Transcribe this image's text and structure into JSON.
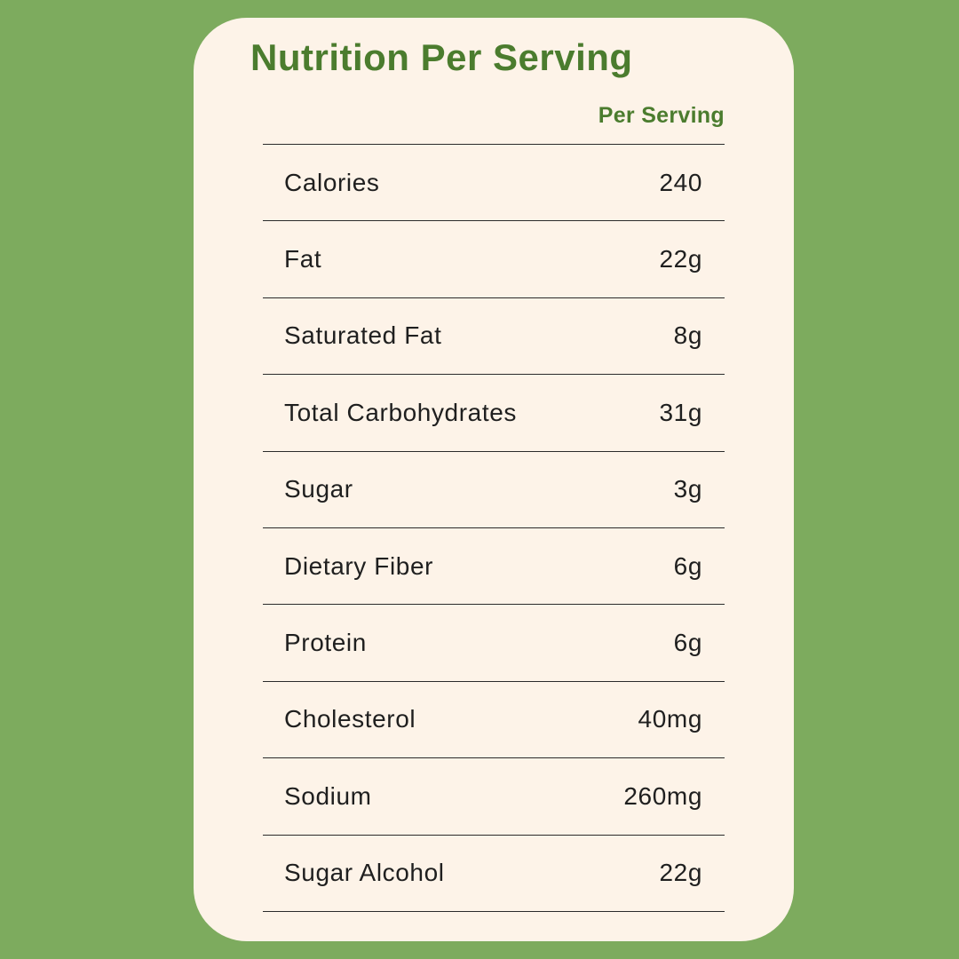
{
  "colors": {
    "page_background": "#7dab5e",
    "card_background": "#fdf3e8",
    "accent_green": "#4b7c2e",
    "text_dark": "#1f1f1f",
    "divider": "#2b2b2b"
  },
  "card": {
    "title": "Nutrition Per Serving"
  },
  "table": {
    "column_header": "Per Serving",
    "rows": [
      {
        "label": "Calories",
        "value": "240"
      },
      {
        "label": "Fat",
        "value": "22g"
      },
      {
        "label": "Saturated Fat",
        "value": "8g"
      },
      {
        "label": "Total Carbohydrates",
        "value": "31g"
      },
      {
        "label": "Sugar",
        "value": "3g"
      },
      {
        "label": "Dietary Fiber",
        "value": "6g"
      },
      {
        "label": "Protein",
        "value": "6g"
      },
      {
        "label": "Cholesterol",
        "value": "40mg"
      },
      {
        "label": "Sodium",
        "value": "260mg"
      },
      {
        "label": "Sugar Alcohol",
        "value": "22g"
      }
    ]
  }
}
